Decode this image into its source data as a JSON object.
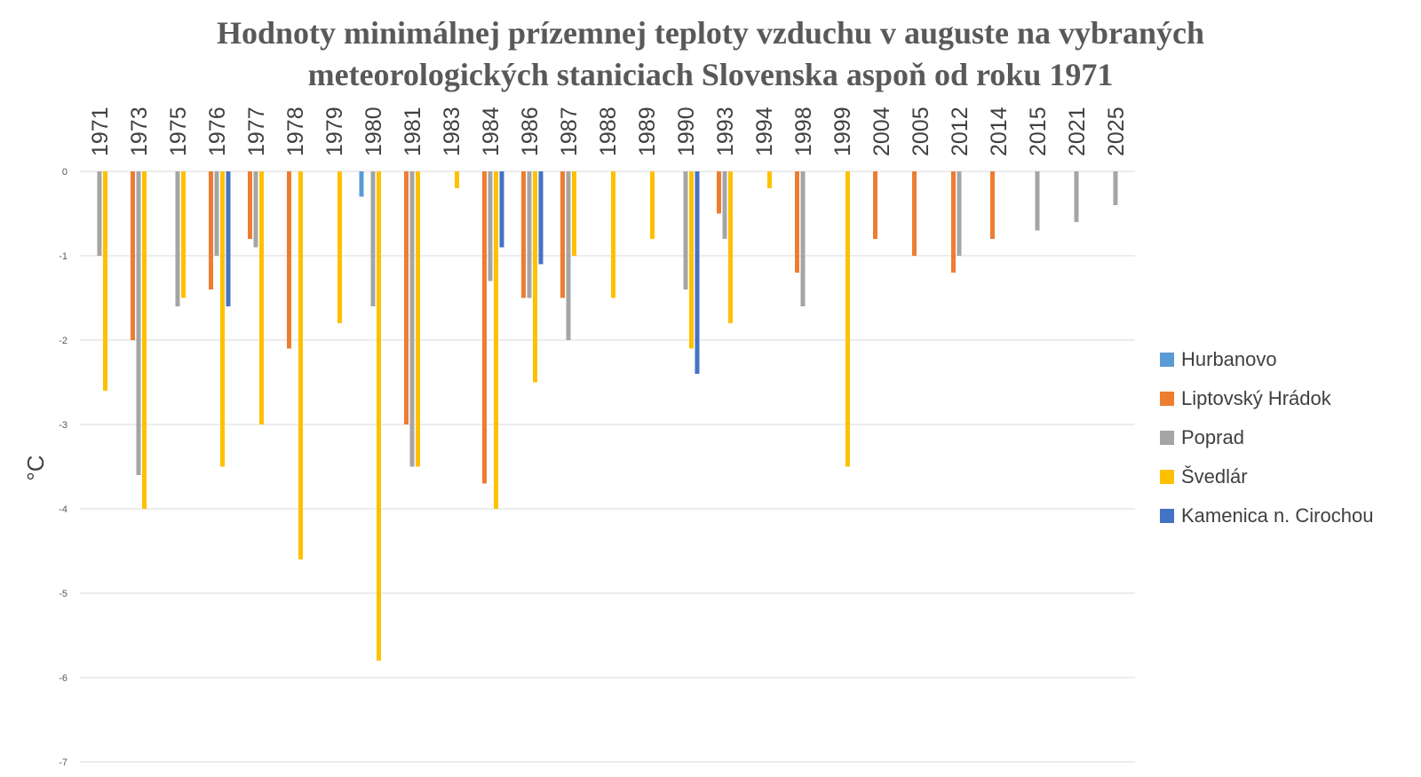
{
  "chart_data": {
    "type": "bar",
    "title": "Hodnoty minimálnej prízemnej teploty vzduchu v auguste na vybraných meteorologických staniciach Slovenska aspoň od roku 1971",
    "title_lines": [
      "Hodnoty minimálnej prízemnej teploty vzduchu v auguste na vybraných",
      "meteorologických staniciach Slovenska aspoň od roku 1971"
    ],
    "ylabel": "°C",
    "xlabel": "",
    "ylim": [
      -7,
      0
    ],
    "yticks": [
      0,
      -1,
      -2,
      -3,
      -4,
      -5,
      -6,
      -7
    ],
    "grid": true,
    "legend_position": "right",
    "categories": [
      "1971",
      "1973",
      "1975",
      "1976",
      "1977",
      "1978",
      "1979",
      "1980",
      "1981",
      "1983",
      "1984",
      "1986",
      "1987",
      "1988",
      "1989",
      "1990",
      "1993",
      "1994",
      "1998",
      "1999",
      "2004",
      "2005",
      "2012",
      "2014",
      "2015",
      "2021",
      "2025"
    ],
    "series": [
      {
        "name": "Hurbanovo",
        "color": "#5B9BD5",
        "values": [
          null,
          null,
          null,
          null,
          null,
          null,
          null,
          -0.3,
          null,
          null,
          null,
          null,
          null,
          null,
          null,
          null,
          null,
          null,
          null,
          null,
          null,
          null,
          null,
          null,
          null,
          null,
          null
        ]
      },
      {
        "name": "Liptovský Hrádok",
        "color": "#ED7D31",
        "values": [
          null,
          -2.0,
          null,
          -1.4,
          -0.8,
          -2.1,
          null,
          null,
          -3.0,
          null,
          -3.7,
          -1.5,
          -1.5,
          null,
          null,
          null,
          -0.5,
          null,
          -1.2,
          null,
          -0.8,
          -1.0,
          -1.2,
          -0.8,
          null,
          null,
          null
        ]
      },
      {
        "name": "Poprad",
        "color": "#A5A5A5",
        "values": [
          -1.0,
          -3.6,
          -1.6,
          -1.0,
          -0.9,
          null,
          null,
          -1.6,
          -3.5,
          null,
          -1.3,
          -1.5,
          -2.0,
          null,
          null,
          -1.4,
          -0.8,
          null,
          -1.6,
          null,
          null,
          null,
          -1.0,
          null,
          -0.7,
          -0.6,
          -0.4
        ]
      },
      {
        "name": "Švedlár",
        "color": "#FFC000",
        "values": [
          -2.6,
          -4.0,
          -1.5,
          -3.5,
          -3.0,
          -4.6,
          -1.8,
          -5.8,
          -3.5,
          -0.2,
          -4.0,
          -2.5,
          -1.0,
          -1.5,
          -0.8,
          -2.1,
          -1.8,
          -0.2,
          null,
          -3.5,
          null,
          null,
          null,
          null,
          null,
          null,
          null
        ]
      },
      {
        "name": "Kamenica n. Cirochou",
        "color": "#4472C4",
        "values": [
          null,
          null,
          null,
          -1.6,
          null,
          null,
          null,
          null,
          null,
          null,
          -0.9,
          -1.1,
          null,
          null,
          null,
          -2.4,
          null,
          null,
          null,
          null,
          null,
          null,
          null,
          null,
          null,
          null,
          null
        ]
      }
    ]
  }
}
